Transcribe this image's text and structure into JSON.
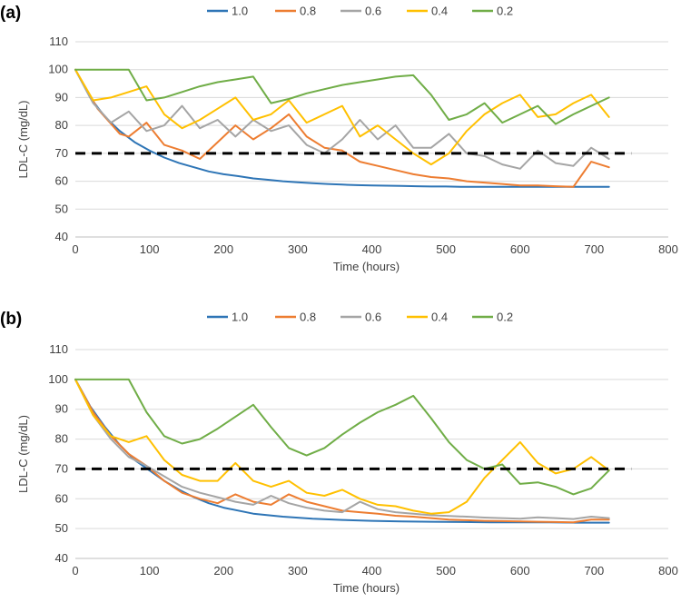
{
  "chart_data": [
    {
      "type": "line",
      "panel_label": "(a)",
      "title": "",
      "xlabel": "Time (hours)",
      "ylabel": "LDL-C (mg/dL)",
      "xlim": [
        0,
        800
      ],
      "ylim": [
        40,
        110
      ],
      "x_ticks": [
        0,
        100,
        200,
        300,
        400,
        500,
        600,
        700,
        800
      ],
      "y_ticks": [
        40,
        50,
        60,
        70,
        80,
        90,
        100,
        110
      ],
      "grid": "horizontal",
      "legend_position": "top",
      "threshold": {
        "value": 70,
        "style": "dashed",
        "color": "#000000",
        "x_range": [
          0,
          750
        ]
      },
      "series": [
        {
          "name": "1.0",
          "color": "#2e75b6",
          "x": [
            0,
            20,
            40,
            60,
            80,
            100,
            120,
            140,
            160,
            180,
            200,
            220,
            240,
            260,
            280,
            300,
            320,
            340,
            360,
            380,
            400,
            420,
            440,
            460,
            480,
            500,
            520,
            540,
            560,
            580,
            600,
            620,
            640,
            660,
            680,
            700,
            720
          ],
          "y": [
            100,
            90,
            83,
            78,
            74,
            71,
            68.5,
            66.5,
            65,
            63.5,
            62.5,
            61.8,
            61,
            60.5,
            60,
            59.6,
            59.3,
            59,
            58.8,
            58.6,
            58.5,
            58.4,
            58.3,
            58.2,
            58.1,
            58.1,
            58,
            58,
            58,
            58,
            58,
            58,
            58,
            58,
            58,
            58,
            58
          ]
        },
        {
          "name": "0.8",
          "color": "#ed7d31",
          "x": [
            0,
            30,
            60,
            72,
            96,
            120,
            144,
            168,
            192,
            216,
            240,
            264,
            288,
            312,
            336,
            360,
            384,
            408,
            432,
            456,
            480,
            504,
            528,
            552,
            576,
            600,
            624,
            648,
            672,
            696,
            720
          ],
          "y": [
            100,
            86,
            77,
            76,
            81,
            73,
            71,
            68,
            74,
            80,
            75,
            79,
            84,
            76,
            72,
            71,
            67,
            65.5,
            64,
            62.5,
            61.5,
            61,
            60,
            59.5,
            59,
            58.5,
            58.5,
            58.2,
            58,
            67,
            65
          ]
        },
        {
          "name": "0.6",
          "color": "#a5a5a5",
          "x": [
            0,
            24,
            48,
            72,
            96,
            120,
            144,
            168,
            192,
            216,
            240,
            264,
            288,
            312,
            336,
            360,
            384,
            408,
            432,
            456,
            480,
            504,
            528,
            552,
            576,
            600,
            624,
            648,
            672,
            696,
            720
          ],
          "y": [
            100,
            88,
            81,
            85,
            78,
            80,
            87,
            79,
            82,
            76,
            82,
            78,
            80,
            73,
            70,
            75,
            82,
            75,
            80,
            72,
            72,
            77,
            70,
            69,
            66,
            64.5,
            71,
            66.5,
            65.5,
            72,
            68
          ]
        },
        {
          "name": "0.4",
          "color": "#ffc000",
          "x": [
            0,
            24,
            48,
            72,
            96,
            120,
            144,
            168,
            192,
            216,
            240,
            264,
            288,
            312,
            336,
            360,
            384,
            408,
            432,
            456,
            480,
            504,
            528,
            552,
            576,
            600,
            624,
            648,
            672,
            696,
            720
          ],
          "y": [
            100,
            89,
            90,
            92,
            94,
            84,
            79,
            82,
            86,
            90,
            82,
            84,
            89,
            81,
            84,
            87,
            76,
            80,
            75,
            70,
            66,
            70,
            78,
            84,
            88,
            91,
            83,
            84,
            88,
            91,
            83
          ]
        },
        {
          "name": "0.2",
          "color": "#70ad47",
          "x": [
            0,
            24,
            48,
            72,
            96,
            120,
            144,
            168,
            192,
            216,
            240,
            264,
            288,
            312,
            336,
            360,
            384,
            408,
            432,
            456,
            480,
            504,
            528,
            552,
            576,
            600,
            624,
            648,
            672,
            696,
            720
          ],
          "y": [
            100,
            100,
            100,
            100,
            89,
            90,
            92,
            94,
            95.5,
            96.5,
            97.5,
            88,
            89.5,
            91.5,
            93,
            94.5,
            95.5,
            96.5,
            97.5,
            98,
            91,
            82,
            84,
            88,
            81,
            84,
            87,
            80.5,
            84,
            87,
            90
          ]
        }
      ]
    },
    {
      "type": "line",
      "panel_label": "(b)",
      "title": "",
      "xlabel": "Time (hours)",
      "ylabel": "LDL-C (mg/dL)",
      "xlim": [
        0,
        800
      ],
      "ylim": [
        40,
        110
      ],
      "x_ticks": [
        0,
        100,
        200,
        300,
        400,
        500,
        600,
        700,
        800
      ],
      "y_ticks": [
        40,
        50,
        60,
        70,
        80,
        90,
        100,
        110
      ],
      "grid": "horizontal",
      "legend_position": "top",
      "threshold": {
        "value": 70,
        "style": "dashed",
        "color": "#000000",
        "x_range": [
          0,
          750
        ]
      },
      "series": [
        {
          "name": "1.0",
          "color": "#2e75b6",
          "x": [
            0,
            20,
            40,
            60,
            80,
            100,
            120,
            140,
            160,
            180,
            200,
            240,
            280,
            320,
            360,
            400,
            440,
            480,
            520,
            560,
            600,
            640,
            680,
            720
          ],
          "y": [
            100,
            91,
            84,
            78,
            73,
            69.5,
            66,
            63,
            60.5,
            58.5,
            57,
            55,
            54,
            53.3,
            52.9,
            52.6,
            52.4,
            52.3,
            52.2,
            52.1,
            52.1,
            52.1,
            52,
            52
          ]
        },
        {
          "name": "0.8",
          "color": "#ed7d31",
          "x": [
            0,
            24,
            48,
            72,
            96,
            120,
            144,
            168,
            192,
            216,
            240,
            264,
            288,
            312,
            336,
            360,
            384,
            408,
            432,
            456,
            480,
            504,
            528,
            552,
            576,
            600,
            624,
            648,
            672,
            696,
            720
          ],
          "y": [
            100,
            89,
            81,
            75,
            71,
            66,
            62,
            60,
            58.5,
            61.5,
            59,
            58,
            61.5,
            59,
            57.5,
            56,
            55.5,
            55,
            54.3,
            54,
            53.5,
            53,
            52.8,
            52.6,
            52.5,
            52.4,
            52.3,
            52.2,
            52.1,
            53,
            53
          ]
        },
        {
          "name": "0.6",
          "color": "#a5a5a5",
          "x": [
            0,
            24,
            48,
            72,
            96,
            120,
            144,
            168,
            192,
            216,
            240,
            264,
            288,
            312,
            336,
            360,
            384,
            408,
            432,
            456,
            480,
            504,
            528,
            552,
            576,
            600,
            624,
            648,
            672,
            696,
            720
          ],
          "y": [
            100,
            88,
            80,
            74,
            71,
            67.5,
            64,
            62,
            60.5,
            59,
            58,
            61,
            58.5,
            57,
            56,
            55.5,
            59,
            56.5,
            55.5,
            55,
            54.5,
            54.2,
            54,
            53.7,
            53.5,
            53.3,
            53.8,
            53.5,
            53.2,
            54,
            53.5
          ]
        },
        {
          "name": "0.4",
          "color": "#ffc000",
          "x": [
            0,
            24,
            48,
            72,
            96,
            120,
            144,
            168,
            192,
            216,
            240,
            264,
            288,
            312,
            336,
            360,
            384,
            408,
            432,
            456,
            480,
            504,
            528,
            552,
            576,
            600,
            624,
            648,
            672,
            696,
            720
          ],
          "y": [
            100,
            88,
            81,
            79,
            81,
            73,
            68,
            66,
            66,
            72,
            66,
            64,
            66,
            62,
            61,
            63,
            60,
            58,
            57.5,
            56,
            55,
            55.5,
            59,
            67,
            73,
            79,
            72,
            68.5,
            70,
            74,
            69.5
          ]
        },
        {
          "name": "0.2",
          "color": "#70ad47",
          "x": [
            0,
            24,
            48,
            72,
            96,
            120,
            144,
            168,
            192,
            216,
            240,
            264,
            288,
            312,
            336,
            360,
            384,
            408,
            432,
            456,
            480,
            504,
            528,
            552,
            576,
            600,
            624,
            648,
            672,
            696,
            720
          ],
          "y": [
            100,
            100,
            100,
            100,
            89,
            81,
            78.5,
            80,
            83.5,
            87.5,
            91.5,
            84,
            77,
            74.5,
            77,
            81.5,
            85.5,
            89,
            91.5,
            94.5,
            87,
            79,
            73,
            70,
            71.5,
            65,
            65.5,
            64,
            61.5,
            63.5,
            69.5
          ]
        }
      ]
    }
  ]
}
